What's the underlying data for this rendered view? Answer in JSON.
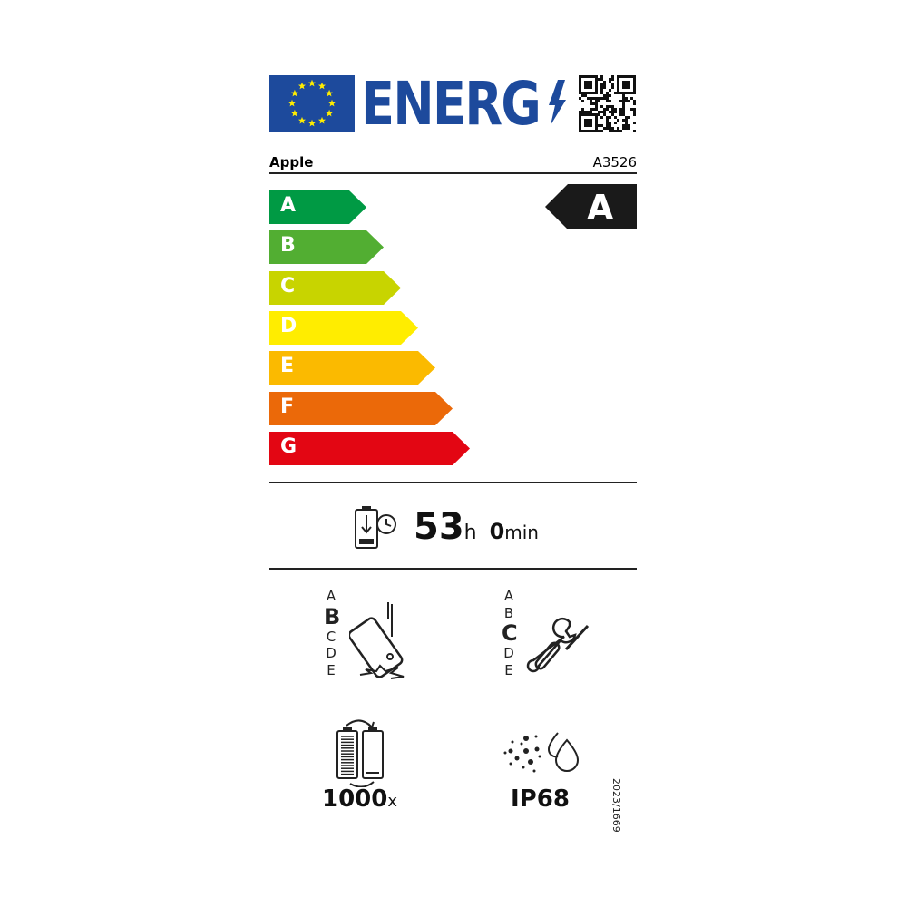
{
  "header": {
    "logo_text": "ENERG",
    "supplier": "Apple",
    "model": "A3526"
  },
  "energy_class": {
    "scale": [
      {
        "label": "A",
        "color": "#009a44"
      },
      {
        "label": "B",
        "color": "#52ae32"
      },
      {
        "label": "C",
        "color": "#c8d400"
      },
      {
        "label": "D",
        "color": "#ffed00"
      },
      {
        "label": "E",
        "color": "#fbba00"
      },
      {
        "label": "F",
        "color": "#eb6909"
      },
      {
        "label": "G",
        "color": "#e30613"
      }
    ],
    "rating": "A"
  },
  "battery_endurance": {
    "hours": "53",
    "hours_unit": "h",
    "minutes": "0",
    "minutes_unit": "min"
  },
  "drop_resistance": {
    "scale": [
      "A",
      "B",
      "C",
      "D",
      "E"
    ],
    "rating": "B"
  },
  "repairability": {
    "scale": [
      "A",
      "B",
      "C",
      "D",
      "E"
    ],
    "rating": "C"
  },
  "battery_cycles": {
    "value": "1000",
    "unit": "x"
  },
  "ingress_protection": {
    "value": "IP68"
  },
  "regulation": "2023/1669",
  "colors": {
    "eu_blue": "#1d4a9c",
    "star_yellow": "#ffed00"
  }
}
